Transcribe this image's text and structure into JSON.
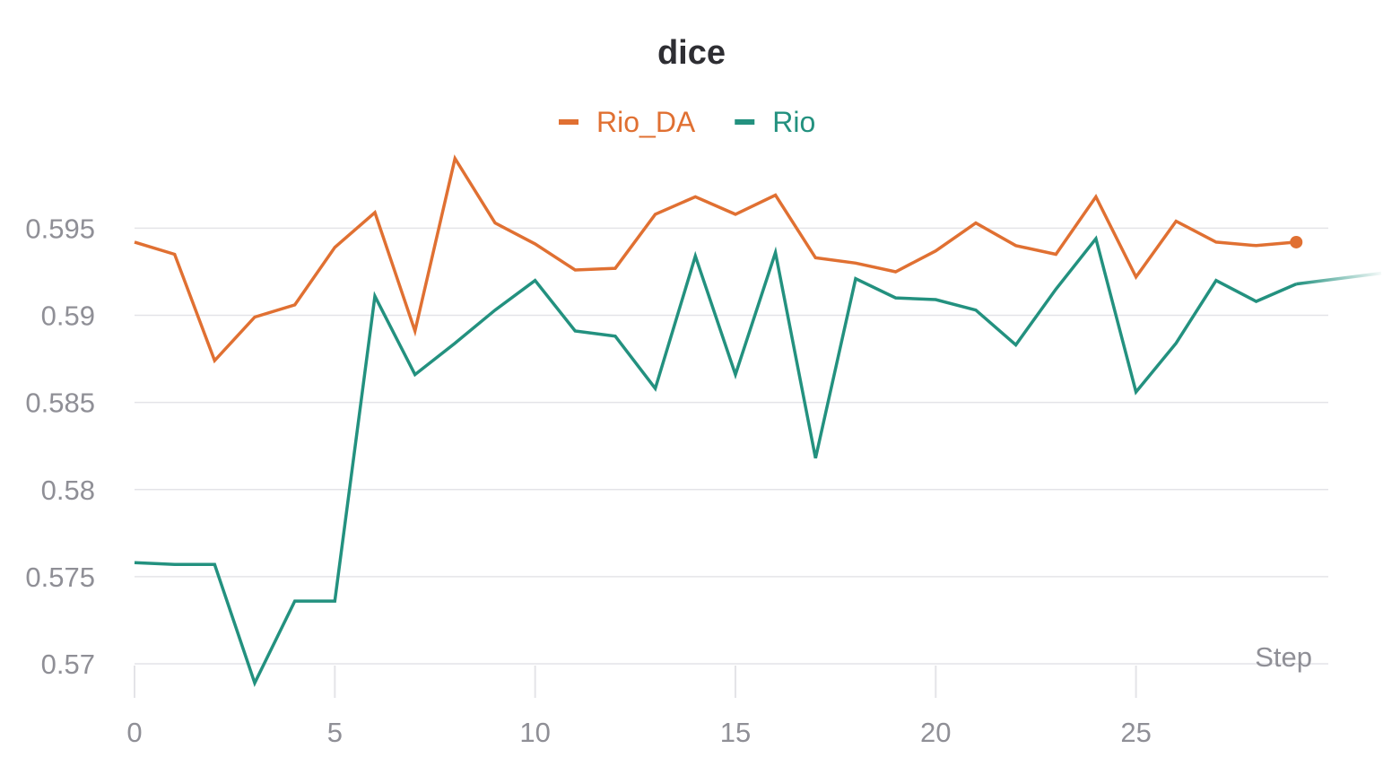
{
  "chart_data": {
    "type": "line",
    "title": "dice",
    "xlabel": "Step",
    "ylabel": "",
    "xlim": [
      0,
      29.8
    ],
    "ylim": [
      0.57,
      0.5995
    ],
    "x_ticks": [
      0,
      5,
      10,
      15,
      20,
      25
    ],
    "y_ticks": [
      0.57,
      0.575,
      0.58,
      0.585,
      0.59,
      0.595
    ],
    "y_tick_labels": [
      "0.57",
      "0.575",
      "0.58",
      "0.585",
      "0.59",
      "0.595"
    ],
    "x_tick_labels": [
      "0",
      "5",
      "10",
      "15",
      "20",
      "25"
    ],
    "grid": true,
    "legend_position": "top-center",
    "series": [
      {
        "name": "Rio_DA",
        "color": "#e07032",
        "x": [
          0,
          1,
          2,
          3,
          4,
          5,
          6,
          7,
          8,
          9,
          10,
          11,
          12,
          13,
          14,
          15,
          16,
          17,
          18,
          19,
          20,
          21,
          22,
          23,
          24,
          25,
          26,
          27,
          28,
          29
        ],
        "values": [
          0.5942,
          0.5935,
          0.5874,
          0.5899,
          0.5906,
          0.5939,
          0.5959,
          0.5891,
          0.599,
          0.5953,
          0.5941,
          0.5926,
          0.5927,
          0.5958,
          0.5968,
          0.5958,
          0.5969,
          0.5933,
          0.593,
          0.5925,
          0.5937,
          0.5953,
          0.594,
          0.5935,
          0.5968,
          0.5922,
          0.5954,
          0.5942,
          0.594,
          0.5942
        ],
        "last_point_marker": true
      },
      {
        "name": "Rio",
        "color": "#23917f",
        "x": [
          0,
          1,
          2,
          3,
          4,
          5,
          6,
          7,
          8,
          9,
          10,
          11,
          12,
          13,
          14,
          15,
          16,
          17,
          18,
          19,
          20,
          21,
          22,
          23,
          24,
          25,
          26,
          27,
          28,
          29,
          30
        ],
        "values": [
          0.5758,
          0.5757,
          0.5757,
          0.5689,
          0.5736,
          0.5736,
          0.5911,
          0.5866,
          0.5884,
          0.5903,
          0.592,
          0.5891,
          0.5888,
          0.5858,
          0.5934,
          0.5866,
          0.5936,
          0.5818,
          0.5921,
          0.591,
          0.5909,
          0.5903,
          0.5883,
          0.5915,
          0.5944,
          0.5856,
          0.5884,
          0.592,
          0.5908,
          0.5918,
          0.5918
        ]
      }
    ]
  }
}
